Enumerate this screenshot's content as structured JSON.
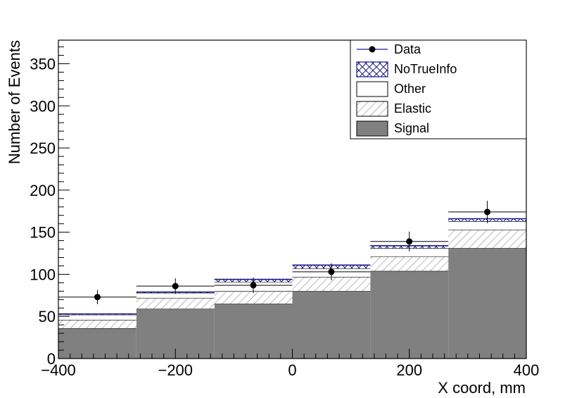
{
  "chart_data": {
    "type": "bar",
    "stacked": true,
    "bin_edges": [
      -400,
      -266.67,
      -133.33,
      0,
      133.33,
      266.67,
      400
    ],
    "series": [
      {
        "name": "Signal",
        "values": [
          36,
          59,
          65,
          80,
          104,
          131
        ],
        "fill": "#808080",
        "style": "solid"
      },
      {
        "name": "Elastic",
        "values": [
          10,
          13,
          15,
          17,
          17,
          22
        ],
        "fill": "#ffffff",
        "style": "hatch"
      },
      {
        "name": "Other",
        "values": [
          6,
          6,
          11,
          10,
          10,
          10
        ],
        "fill": "#ffffff",
        "style": "open"
      },
      {
        "name": "NoTrueInfo",
        "values": [
          1,
          1,
          3,
          4,
          3,
          3
        ],
        "fill": "#ffffff",
        "style": "crosshatch",
        "color": "#1a1a8c"
      }
    ],
    "data_points": {
      "name": "Data",
      "x": [
        -333.3,
        -200,
        -66.7,
        66.7,
        200,
        333.3
      ],
      "y": [
        73,
        86,
        87,
        103,
        139,
        174
      ],
      "yerr": [
        8.5,
        9.3,
        9.3,
        10.1,
        11.8,
        13.2
      ]
    },
    "xlabel": "X coord, mm",
    "ylabel": "Number of Events",
    "xlim": [
      -400,
      400
    ],
    "ylim": [
      0,
      378
    ],
    "x_ticks": [
      "−400",
      "−200",
      "0",
      "200",
      "400"
    ],
    "x_tick_values": [
      -400,
      -200,
      0,
      200,
      400
    ],
    "y_ticks": [
      "0",
      "50",
      "100",
      "150",
      "200",
      "250",
      "300",
      "350"
    ],
    "y_tick_values": [
      0,
      50,
      100,
      150,
      200,
      250,
      300,
      350
    ],
    "legend_position": "top-right",
    "legend": [
      "Data",
      "NoTrueInfo",
      "Other",
      "Elastic",
      "Signal"
    ]
  }
}
